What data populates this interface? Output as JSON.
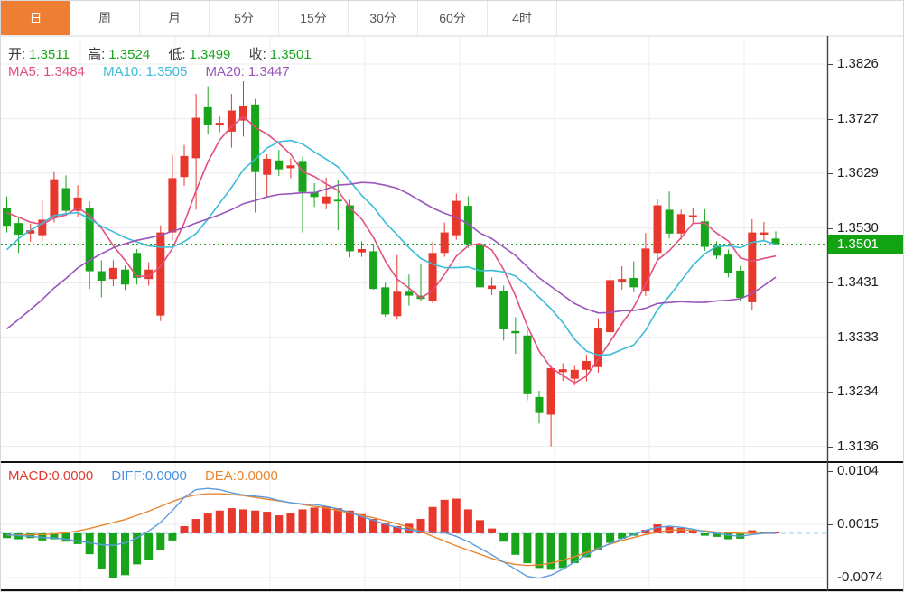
{
  "tabbar": {
    "active_color": "#ee7e33",
    "tabs": [
      {
        "label": "日",
        "active": true
      },
      {
        "label": "周",
        "active": false
      },
      {
        "label": "月",
        "active": false
      },
      {
        "label": "5分",
        "active": false
      },
      {
        "label": "15分",
        "active": false
      },
      {
        "label": "30分",
        "active": false
      },
      {
        "label": "60分",
        "active": false
      },
      {
        "label": "4时",
        "active": false
      }
    ]
  },
  "ohlc_legend": [
    {
      "label": "开:",
      "value": "1.3511"
    },
    {
      "label": "高:",
      "value": "1.3524"
    },
    {
      "label": "低:",
      "value": "1.3499"
    },
    {
      "label": "收:",
      "value": "1.3501"
    }
  ],
  "ma_legend": [
    {
      "label": "MA5:",
      "value": "1.3484",
      "color": "#e25082"
    },
    {
      "label": "MA10:",
      "value": "1.3505",
      "color": "#3bbcd8"
    },
    {
      "label": "MA20:",
      "value": "1.3447",
      "color": "#9a55bb"
    }
  ],
  "macd_legend": [
    {
      "label": "MACD:",
      "value": "0.0000",
      "color": "#e03a30"
    },
    {
      "label": "DIFF:",
      "value": "0.0000",
      "color": "#4a90e0"
    },
    {
      "label": "DEA:",
      "value": "0.0000",
      "color": "#e8852f"
    }
  ],
  "axis": {
    "price_labels": [
      "1.3826",
      "1.3727",
      "1.3629",
      "1.3530",
      "1.3431",
      "1.3333",
      "1.3234",
      "1.3136"
    ],
    "current_price": "1.3501",
    "macd_labels": [
      "0.0104",
      "0.0015",
      "-0.0074"
    ]
  },
  "chart_data": {
    "type": "candlestick_with_macd",
    "timeframe": "日",
    "price_axis_ticks": [
      1.3826,
      1.3727,
      1.3629,
      1.353,
      1.3431,
      1.3333,
      1.3234,
      1.3136
    ],
    "current_price": 1.3501,
    "ohlc_latest": {
      "open": 1.3511,
      "high": 1.3524,
      "low": 1.3499,
      "close": 1.3501
    },
    "ma_values_latest": {
      "ma5": 1.3484,
      "ma10": 1.3505,
      "ma20": 1.3447
    },
    "ma_periods": [
      5,
      10,
      20
    ],
    "pre_window_closes": [
      1.32,
      1.318,
      1.317,
      1.318,
      1.32,
      1.322,
      1.32,
      1.318,
      1.32,
      1.324,
      1.328,
      1.332,
      1.337,
      1.342,
      1.348,
      1.353,
      1.356,
      1.357,
      1.3565,
      1.356
    ],
    "candles": [
      [
        1.3566,
        1.3587,
        1.3522,
        1.3534
      ],
      [
        1.3539,
        1.3549,
        1.3485,
        1.3518
      ],
      [
        1.352,
        1.3538,
        1.3505,
        1.3526
      ],
      [
        1.3517,
        1.3579,
        1.3506,
        1.3545
      ],
      [
        1.3548,
        1.3631,
        1.354,
        1.3618
      ],
      [
        1.3602,
        1.3625,
        1.3552,
        1.3561
      ],
      [
        1.3561,
        1.3607,
        1.355,
        1.3585
      ],
      [
        1.3566,
        1.3578,
        1.342,
        1.3452
      ],
      [
        1.3452,
        1.3472,
        1.3405,
        1.3435
      ],
      [
        1.3438,
        1.3472,
        1.3425,
        1.3458
      ],
      [
        1.3455,
        1.3462,
        1.3418,
        1.3428
      ],
      [
        1.3485,
        1.3492,
        1.3428,
        1.344
      ],
      [
        1.3438,
        1.3468,
        1.3426,
        1.3455
      ],
      [
        1.3372,
        1.3535,
        1.3362,
        1.3522
      ],
      [
        1.3522,
        1.3662,
        1.3508,
        1.362
      ],
      [
        1.3622,
        1.368,
        1.3606,
        1.366
      ],
      [
        1.3656,
        1.3772,
        1.3563,
        1.3729
      ],
      [
        1.3748,
        1.3786,
        1.37,
        1.3716
      ],
      [
        1.3715,
        1.3732,
        1.3703,
        1.372
      ],
      [
        1.3704,
        1.3772,
        1.3675,
        1.3742
      ],
      [
        1.3724,
        1.3795,
        1.3695,
        1.375
      ],
      [
        1.3753,
        1.3763,
        1.3558,
        1.3631
      ],
      [
        1.3626,
        1.3663,
        1.3586,
        1.3655
      ],
      [
        1.3652,
        1.3671,
        1.3624,
        1.3636
      ],
      [
        1.3638,
        1.3656,
        1.362,
        1.3643
      ],
      [
        1.3651,
        1.3659,
        1.3522,
        1.3595
      ],
      [
        1.3595,
        1.3611,
        1.3568,
        1.3586
      ],
      [
        1.3574,
        1.3621,
        1.3564,
        1.3587
      ],
      [
        1.3581,
        1.3616,
        1.3526,
        1.3578
      ],
      [
        1.3571,
        1.3581,
        1.3477,
        1.3488
      ],
      [
        1.3486,
        1.3506,
        1.3478,
        1.3492
      ],
      [
        1.3488,
        1.3502,
        1.3419,
        1.342
      ],
      [
        1.3423,
        1.3431,
        1.337,
        1.3374
      ],
      [
        1.3371,
        1.3481,
        1.3365,
        1.3415
      ],
      [
        1.3415,
        1.3446,
        1.339,
        1.3408
      ],
      [
        1.3408,
        1.3466,
        1.3397,
        1.3402
      ],
      [
        1.3399,
        1.3505,
        1.3394,
        1.3485
      ],
      [
        1.3485,
        1.354,
        1.3478,
        1.3522
      ],
      [
        1.3517,
        1.3592,
        1.3509,
        1.3579
      ],
      [
        1.357,
        1.3587,
        1.3494,
        1.3501
      ],
      [
        1.3501,
        1.3509,
        1.3417,
        1.3423
      ],
      [
        1.342,
        1.3441,
        1.3409,
        1.3426
      ],
      [
        1.3417,
        1.3426,
        1.3327,
        1.3347
      ],
      [
        1.3344,
        1.3369,
        1.3303,
        1.334
      ],
      [
        1.3336,
        1.3346,
        1.3219,
        1.323
      ],
      [
        1.3225,
        1.3236,
        1.3177,
        1.3196
      ],
      [
        1.3193,
        1.3281,
        1.3136,
        1.3277
      ],
      [
        1.327,
        1.3286,
        1.3254,
        1.3275
      ],
      [
        1.3258,
        1.3281,
        1.3246,
        1.3274
      ],
      [
        1.3274,
        1.3301,
        1.3253,
        1.329
      ],
      [
        1.3279,
        1.3367,
        1.3269,
        1.335
      ],
      [
        1.3342,
        1.3454,
        1.3334,
        1.3436
      ],
      [
        1.3432,
        1.3461,
        1.3419,
        1.3438
      ],
      [
        1.344,
        1.347,
        1.3414,
        1.3423
      ],
      [
        1.3417,
        1.3521,
        1.3407,
        1.3493
      ],
      [
        1.3485,
        1.3583,
        1.3474,
        1.3571
      ],
      [
        1.3563,
        1.3596,
        1.3511,
        1.352
      ],
      [
        1.352,
        1.3563,
        1.3509,
        1.3555
      ],
      [
        1.355,
        1.3566,
        1.3539,
        1.3553
      ],
      [
        1.3542,
        1.3564,
        1.3489,
        1.3496
      ],
      [
        1.3498,
        1.3506,
        1.3474,
        1.348
      ],
      [
        1.3482,
        1.3491,
        1.3441,
        1.3448
      ],
      [
        1.3453,
        1.3461,
        1.3397,
        1.3404
      ],
      [
        1.3396,
        1.3546,
        1.3382,
        1.3522
      ],
      [
        1.3518,
        1.3541,
        1.3507,
        1.3522
      ],
      [
        1.3511,
        1.3524,
        1.3499,
        1.3501
      ]
    ],
    "macd": {
      "axis_ticks": [
        0.0104,
        0.0015,
        -0.0074
      ],
      "latest": {
        "macd": 0.0,
        "diff": 0.0,
        "dea": 0.0
      },
      "hist": [
        -0.0008,
        -0.001,
        -0.0008,
        -0.0012,
        -0.001,
        -0.0014,
        -0.0018,
        -0.0035,
        -0.006,
        -0.0074,
        -0.007,
        -0.0052,
        -0.0045,
        -0.0028,
        -0.0012,
        0.0012,
        0.0024,
        0.0033,
        0.0038,
        0.0042,
        0.004,
        0.0038,
        0.0036,
        0.003,
        0.0034,
        0.004,
        0.0043,
        0.0045,
        0.0042,
        0.0038,
        0.0032,
        0.0024,
        0.0017,
        0.0012,
        0.0016,
        0.0024,
        0.0044,
        0.0056,
        0.0058,
        0.004,
        0.0022,
        0.0008,
        -0.0014,
        -0.0036,
        -0.005,
        -0.0058,
        -0.0061,
        -0.0058,
        -0.005,
        -0.004,
        -0.0028,
        -0.0016,
        -0.0009,
        -0.0004,
        0.0006,
        0.0015,
        0.0011,
        0.0009,
        0.0006,
        -0.0004,
        -0.0006,
        -0.001,
        -0.0009,
        0.0005,
        0.0003,
        0.0002
      ],
      "diff": [
        -0.0002,
        -0.0004,
        -0.0005,
        -0.0007,
        -0.0008,
        -0.001,
        -0.0013,
        -0.0016,
        -0.0019,
        -0.002,
        -0.0016,
        -0.0008,
        0.0004,
        0.0018,
        0.0038,
        0.006,
        0.0073,
        0.0075,
        0.0073,
        0.0068,
        0.0064,
        0.0062,
        0.006,
        0.0055,
        0.0051,
        0.0049,
        0.0048,
        0.0045,
        0.0041,
        0.0035,
        0.0028,
        0.0022,
        0.0015,
        0.001,
        0.0006,
        0.0003,
        0.0002,
        0.0001,
        -0.0005,
        -0.0014,
        -0.0025,
        -0.0036,
        -0.0048,
        -0.006,
        -0.0072,
        -0.0075,
        -0.007,
        -0.006,
        -0.0048,
        -0.0036,
        -0.0026,
        -0.0017,
        -0.0009,
        -0.0002,
        0.0005,
        0.001,
        0.0012,
        0.001,
        0.0007,
        0.0003,
        0.0,
        -0.0003,
        -0.0005,
        -0.0002,
        0.0,
        0.0
      ],
      "dea": [
        -0.0003,
        -0.0003,
        -0.0002,
        -0.0002,
        -0.0001,
        0.0001,
        0.0004,
        0.0008,
        0.0013,
        0.0018,
        0.0023,
        0.003,
        0.0037,
        0.0045,
        0.0053,
        0.006,
        0.0064,
        0.0066,
        0.0066,
        0.0065,
        0.0063,
        0.006,
        0.0057,
        0.0054,
        0.0051,
        0.0048,
        0.0045,
        0.0042,
        0.0038,
        0.0034,
        0.003,
        0.0026,
        0.0021,
        0.0016,
        0.001,
        0.0003,
        -0.0005,
        -0.0013,
        -0.0021,
        -0.0028,
        -0.0035,
        -0.0042,
        -0.0048,
        -0.0052,
        -0.0054,
        -0.0053,
        -0.005,
        -0.0045,
        -0.0039,
        -0.0032,
        -0.0025,
        -0.0018,
        -0.0012,
        -0.0007,
        -0.0002,
        0.0002,
        0.0005,
        0.0006,
        0.0005,
        0.0004,
        0.0002,
        0.0001,
        0.0,
        0.0,
        0.0,
        0.0
      ]
    },
    "colors": {
      "up": "#e8372c",
      "down": "#18a51c",
      "ma5": "#e25082",
      "ma10": "#3bbcd8",
      "ma20": "#9a55bb",
      "diff_line": "#5a9ce0",
      "dea_line": "#e8852f",
      "grid": "#ececec",
      "current_price_line": "#21a321",
      "badge_bg": "#12a312",
      "zero_dash": "#8fcbe8"
    }
  }
}
